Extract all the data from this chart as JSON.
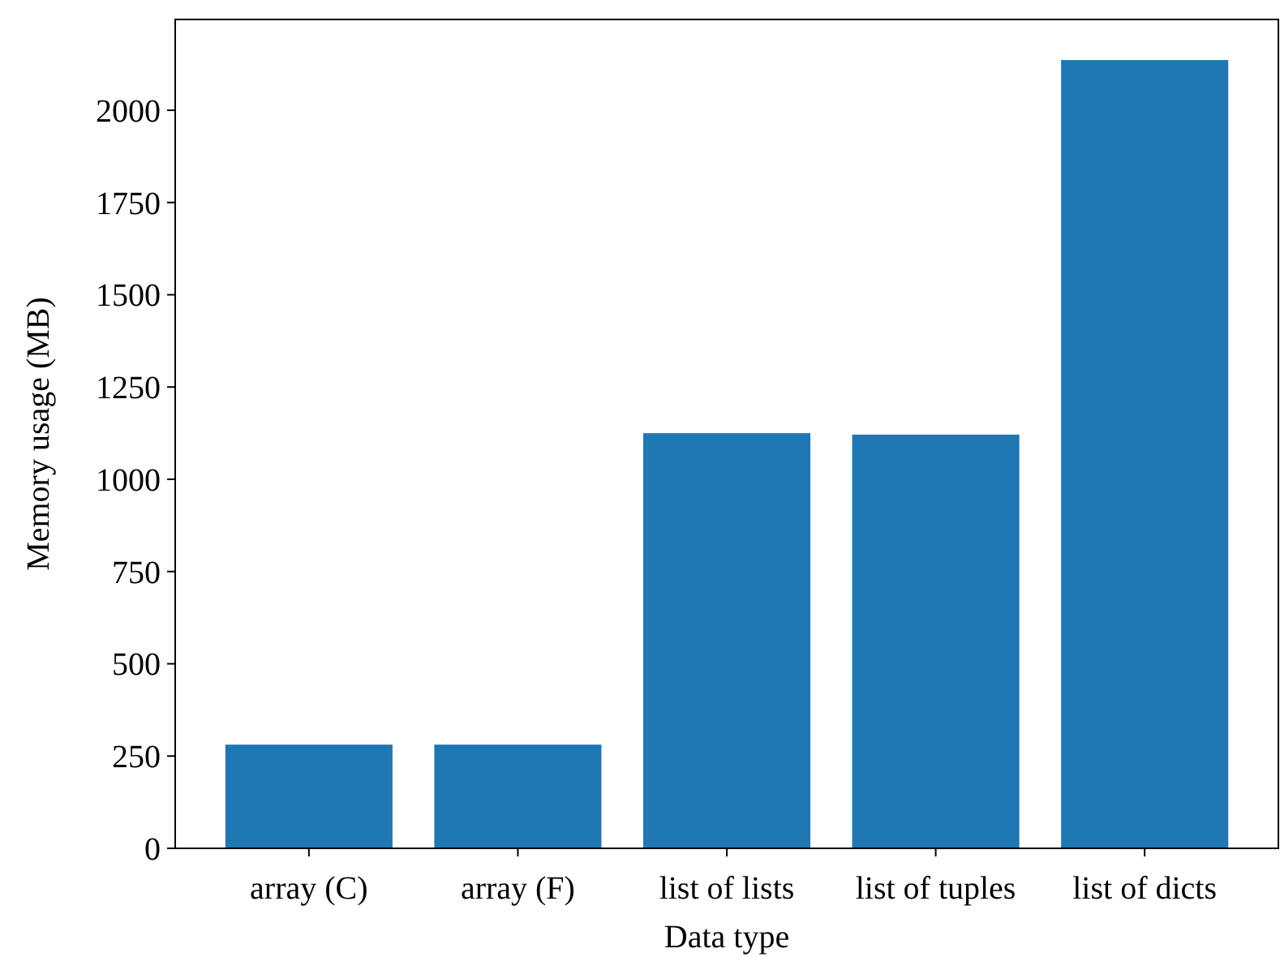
{
  "chart_data": {
    "type": "bar",
    "xlabel": "Data type",
    "ylabel": "Memory usage (MB)",
    "categories": [
      "array (C)",
      "array (F)",
      "list of lists",
      "list of tuples",
      "list of dicts"
    ],
    "values": [
      281,
      281,
      1125,
      1121,
      2136
    ],
    "color": "#1f77b4",
    "ylim": [
      0,
      2246
    ],
    "yticks": [
      0,
      250,
      500,
      750,
      1000,
      1250,
      1500,
      1750,
      2000
    ],
    "grid": false
  }
}
